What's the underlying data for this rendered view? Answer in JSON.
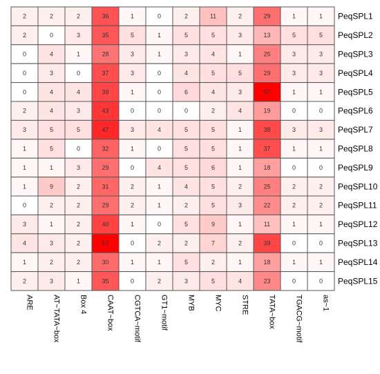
{
  "chart_data": {
    "type": "heatmap",
    "title": "",
    "xlabel": "",
    "ylabel": "",
    "columns": [
      "ARE",
      "AT~TATA~box",
      "Box 4",
      "CAAT~box",
      "CGTCA~motif",
      "GT1~motif",
      "MYB",
      "MYC",
      "STRE",
      "TATA~box",
      "TGACG~motif",
      "as~1"
    ],
    "rows": [
      "PeqSPL1",
      "PeqSPL2",
      "PeqSPL3",
      "PeqSPL4",
      "PeqSPL5",
      "PeqSPL6",
      "PeqSPL7",
      "PeqSPL8",
      "PeqSPL9",
      "PeqSPL10",
      "PeqSPL11",
      "PeqSPL12",
      "PeqSPL13",
      "PeqSPL14",
      "PeqSPL15"
    ],
    "values": [
      [
        2,
        2,
        2,
        36,
        1,
        0,
        2,
        11,
        2,
        29,
        1,
        1
      ],
      [
        2,
        0,
        3,
        35,
        5,
        1,
        5,
        5,
        3,
        13,
        5,
        5
      ],
      [
        0,
        4,
        1,
        28,
        3,
        1,
        3,
        4,
        1,
        25,
        3,
        3
      ],
      [
        0,
        3,
        0,
        37,
        3,
        0,
        4,
        5,
        5,
        29,
        3,
        3
      ],
      [
        0,
        4,
        4,
        39,
        1,
        0,
        6,
        4,
        3,
        57,
        1,
        1
      ],
      [
        2,
        4,
        3,
        43,
        0,
        0,
        0,
        2,
        4,
        19,
        0,
        0
      ],
      [
        3,
        5,
        5,
        47,
        3,
        4,
        5,
        5,
        1,
        38,
        3,
        3
      ],
      [
        1,
        5,
        0,
        32,
        1,
        0,
        5,
        5,
        1,
        37,
        1,
        1
      ],
      [
        1,
        1,
        3,
        29,
        0,
        4,
        5,
        6,
        1,
        18,
        0,
        0
      ],
      [
        1,
        9,
        2,
        31,
        2,
        1,
        4,
        5,
        2,
        25,
        2,
        2
      ],
      [
        0,
        2,
        2,
        29,
        2,
        1,
        2,
        5,
        3,
        22,
        2,
        2
      ],
      [
        3,
        1,
        2,
        40,
        1,
        0,
        5,
        9,
        1,
        11,
        1,
        1
      ],
      [
        4,
        3,
        2,
        57,
        0,
        2,
        2,
        7,
        2,
        39,
        0,
        0
      ],
      [
        1,
        2,
        2,
        30,
        1,
        1,
        5,
        2,
        1,
        18,
        1,
        1
      ],
      [
        2,
        3,
        1,
        35,
        0,
        2,
        3,
        5,
        4,
        23,
        0,
        0
      ]
    ],
    "value_range": [
      0,
      57
    ],
    "color_low": "#ffffff",
    "color_high": "#ff0000",
    "grid": true,
    "legend": "none"
  }
}
